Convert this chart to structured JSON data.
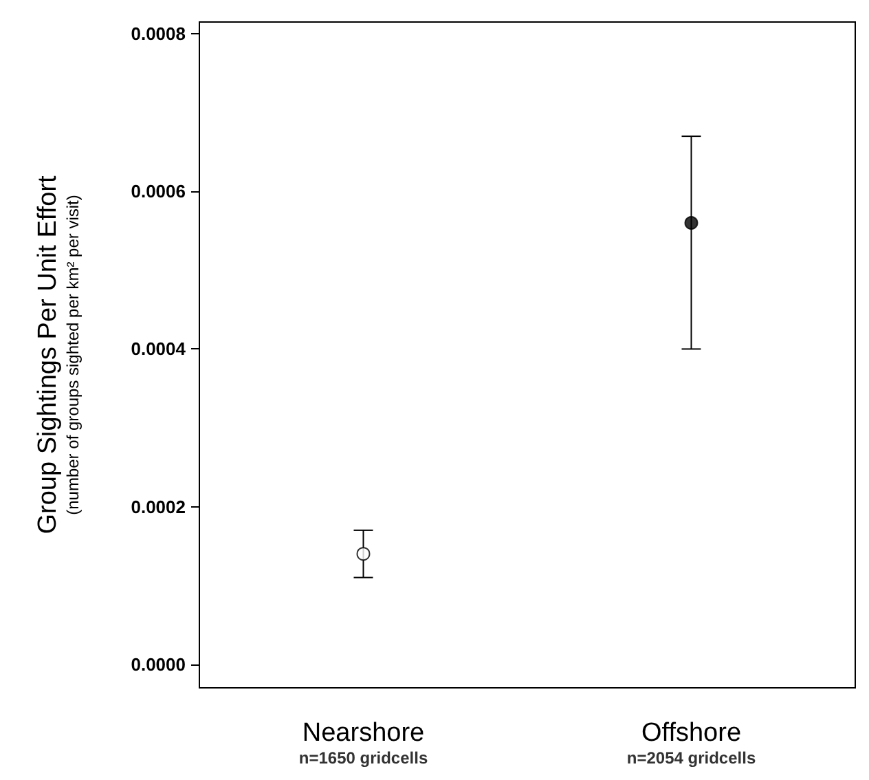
{
  "chart_data": {
    "type": "scatter",
    "ylabel": "Group Sightings Per Unit Effort\n(number of groups sighted per km² per visit)",
    "categories": [
      "Nearshore\nn=1650 gridcells",
      "Offshore\nn=2054 gridcells"
    ],
    "values": [
      0.00014,
      0.00056
    ],
    "errors": [
      [
        0.00011,
        0.00017
      ],
      [
        0.0004,
        0.00067
      ]
    ],
    "colors": [
      "#ffffff",
      "#000000"
    ],
    "marker": "circle",
    "ylim": [
      -3e-05,
      0.000815
    ],
    "yticks": [
      {
        "value": 0,
        "label": "0.0000"
      },
      {
        "value": 0.0002,
        "label": "0.0002"
      },
      {
        "value": 0.0004,
        "label": "0.0004"
      },
      {
        "value": 0.0006,
        "label": "0.0006"
      },
      {
        "value": 0.0008,
        "label": "0.0008"
      }
    ],
    "grid": false
  }
}
